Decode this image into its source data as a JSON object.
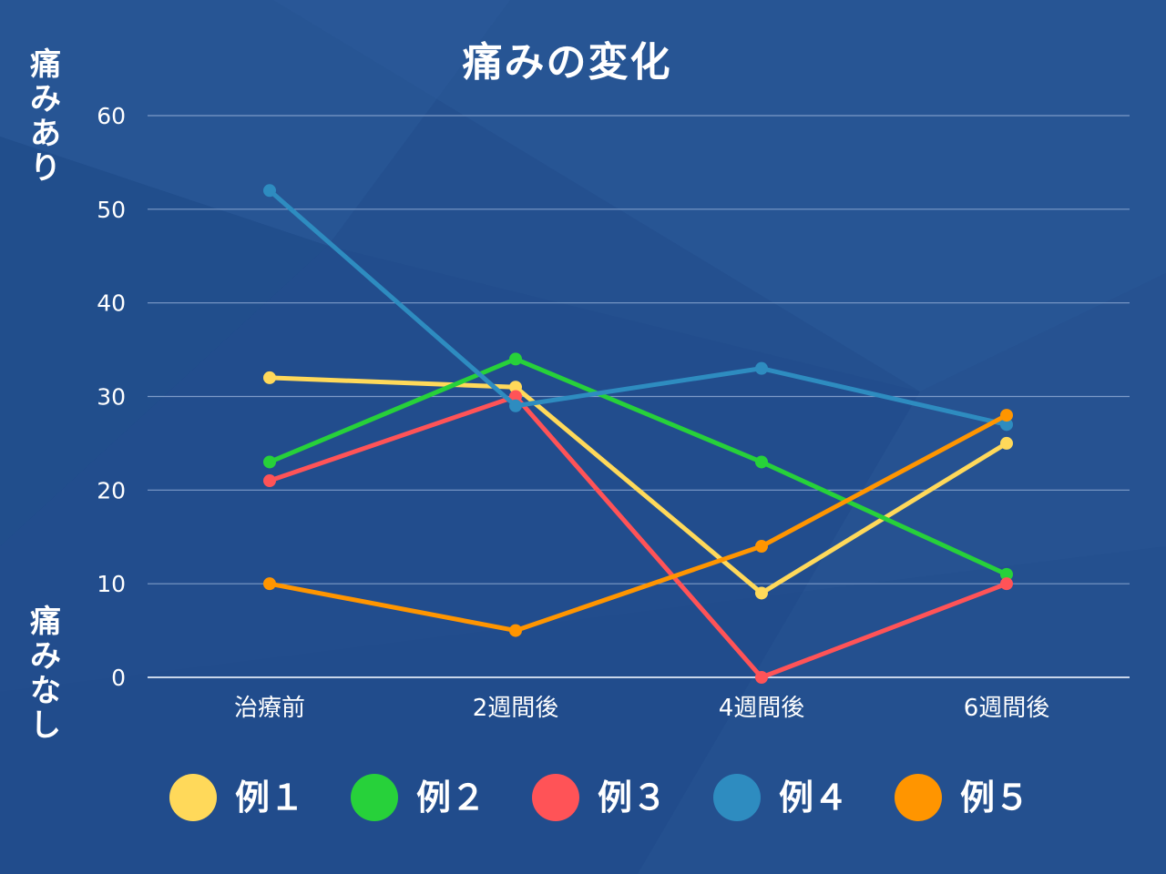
{
  "chart_data": {
    "type": "line",
    "title": "痛みの変化",
    "ylabel_top": "痛みあり",
    "ylabel_bottom": "痛みなし",
    "categories": [
      "治療前",
      "2週間後",
      "4週間後",
      "6週間後"
    ],
    "yticks": [
      "0",
      "10",
      "20",
      "30",
      "40",
      "50",
      "60"
    ],
    "ylim": [
      0,
      60
    ],
    "grid": true,
    "legend_position": "bottom",
    "series": [
      {
        "name": "例１",
        "color": "#ffd95a",
        "values": [
          32,
          31,
          9,
          25
        ]
      },
      {
        "name": "例２",
        "color": "#27d13a",
        "values": [
          23,
          34,
          23,
          11
        ]
      },
      {
        "name": "例３",
        "color": "#ff5357",
        "values": [
          21,
          30,
          0,
          10
        ]
      },
      {
        "name": "例４",
        "color": "#2e8cc0",
        "values": [
          52,
          29,
          33,
          27
        ]
      },
      {
        "name": "例５",
        "color": "#ff9500",
        "values": [
          10,
          5,
          14,
          28
        ]
      }
    ]
  }
}
